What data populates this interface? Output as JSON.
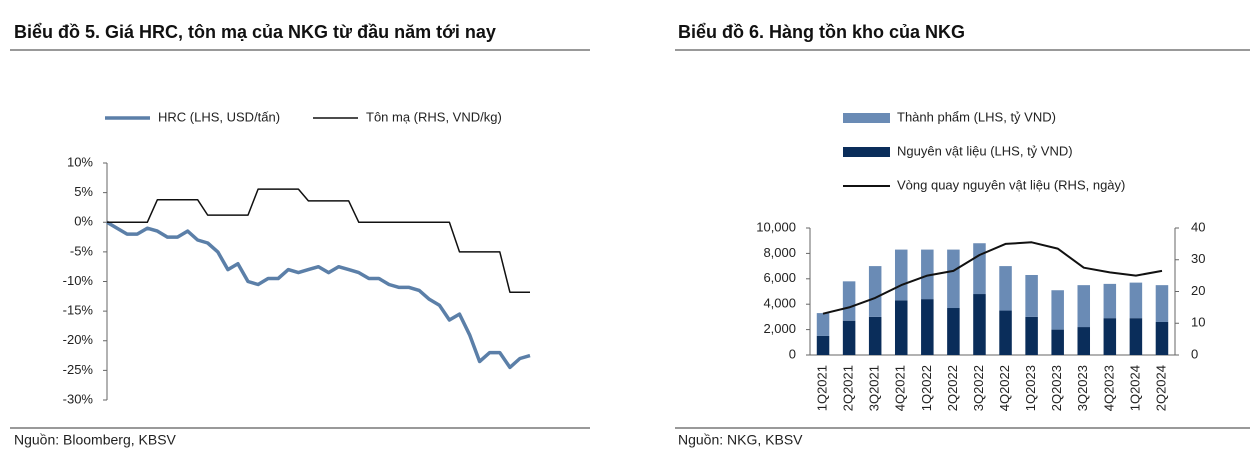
{
  "chart_data": [
    {
      "type": "line",
      "title": "Biểu đồ 5. Giá HRC, tôn mạ của NKG từ đầu năm tới nay",
      "source": "Nguồn: Bloomberg, KBSV",
      "ylim": [
        -30,
        10
      ],
      "yticks": [
        {
          "value": -30,
          "label": "-30%"
        },
        {
          "value": -25,
          "label": "-25%"
        },
        {
          "value": -20,
          "label": "-20%"
        },
        {
          "value": -15,
          "label": "-15%"
        },
        {
          "value": -10,
          "label": "-10%"
        },
        {
          "value": -5,
          "label": "-5%"
        },
        {
          "value": 0,
          "label": "0%"
        },
        {
          "value": 5,
          "label": "5%"
        },
        {
          "value": 10,
          "label": "10%"
        }
      ],
      "legend": "top",
      "series": [
        {
          "name": "HRC (LHS, USD/tấn)",
          "color": "#5b7fa8",
          "width": 3.5,
          "values": [
            0,
            -1,
            -2,
            -2,
            -1,
            -1.5,
            -2.5,
            -2.5,
            -1.5,
            -3,
            -3.5,
            -5,
            -8,
            -7,
            -10,
            -10.5,
            -9.5,
            -9.5,
            -8,
            -8.5,
            -8,
            -7.5,
            -8.5,
            -7.5,
            -8,
            -8.5,
            -9.5,
            -9.5,
            -10.5,
            -11,
            -11,
            -11.5,
            -13,
            -14,
            -16.5,
            -15.5,
            -19,
            -23.5,
            -22,
            -22,
            -24.5,
            -23,
            -22.5
          ]
        },
        {
          "name": "Tôn mạ (RHS, VND/kg)",
          "color": "#111111",
          "width": 1.5,
          "values": [
            0,
            0,
            0,
            0,
            0,
            3.8,
            3.8,
            3.8,
            3.8,
            3.8,
            1.2,
            1.2,
            1.2,
            1.2,
            1.2,
            5.6,
            5.6,
            5.6,
            5.6,
            5.6,
            3.6,
            3.6,
            3.6,
            3.6,
            3.6,
            0,
            0,
            0,
            0,
            0,
            0,
            0,
            0,
            0,
            0,
            -5,
            -5,
            -5,
            -5,
            -5,
            -11.8,
            -11.8,
            -11.8
          ]
        }
      ]
    },
    {
      "type": "combo",
      "title": "Biểu đồ 6. Hàng tồn kho của NKG",
      "source": "Nguồn: NKG, KBSV",
      "categories": [
        "1Q2021",
        "2Q2021",
        "3Q2021",
        "4Q2021",
        "1Q2022",
        "2Q2022",
        "3Q2022",
        "4Q2022",
        "1Q2023",
        "2Q2023",
        "3Q2023",
        "4Q2023",
        "1Q2024",
        "2Q2024"
      ],
      "ylim": [
        0,
        10000
      ],
      "yticks": [
        0,
        {
          "value": 2000,
          "label": "2,000"
        },
        {
          "value": 4000,
          "label": "4,000"
        },
        {
          "value": 6000,
          "label": "6,000"
        },
        {
          "value": 8000,
          "label": "8,000"
        },
        {
          "value": 10000,
          "label": "10,000"
        }
      ],
      "y2lim": [
        0,
        40
      ],
      "y2ticks": [
        0,
        10,
        20,
        30,
        40
      ],
      "legend": "top-left",
      "stacked": true,
      "series": [
        {
          "name": "Thành phẩm (LHS, tỷ VND)",
          "type": "bar",
          "color": "#6a8bb5",
          "values": [
            1800,
            3100,
            4000,
            4000,
            3900,
            4600,
            4000,
            3500,
            3300,
            3100,
            3300,
            2700,
            2800,
            2900
          ]
        },
        {
          "name": "Nguyên vật liệu (LHS, tỷ VND)",
          "type": "bar",
          "color": "#0a2d5a",
          "values": [
            1500,
            2700,
            3000,
            4300,
            4400,
            3700,
            4800,
            3500,
            3000,
            2000,
            2200,
            2900,
            2900,
            2600
          ]
        },
        {
          "name": "Vòng quay nguyên vật liệu (RHS, ngày)",
          "type": "line",
          "axis": "y2",
          "color": "#111111",
          "values": [
            13,
            15,
            18,
            22,
            25,
            26.5,
            31.5,
            35,
            35.5,
            33.5,
            27.5,
            26,
            25,
            26.5
          ]
        }
      ]
    }
  ]
}
